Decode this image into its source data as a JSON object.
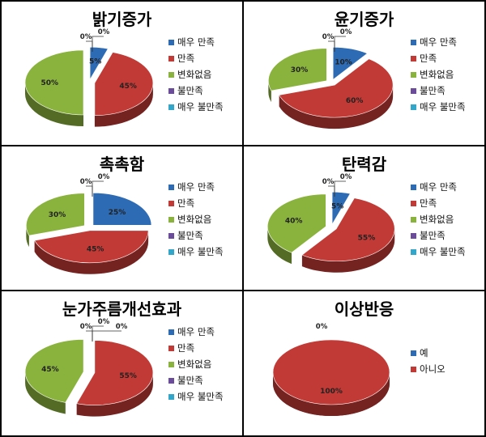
{
  "colors": {
    "매우 만족": "#2E6BB5",
    "만족": "#C23A36",
    "변화없음": "#8AB33D",
    "불만족": "#6B4C9A",
    "매우 불만족": "#33A7C9",
    "예": "#2E6BB5",
    "아니오": "#C23A36"
  },
  "chart_data": [
    {
      "type": "pie",
      "title": "밝기증가",
      "categories": [
        "매우 만족",
        "만족",
        "변화없음",
        "불만족",
        "매우 불만족"
      ],
      "values": [
        5,
        45,
        50,
        0,
        0
      ],
      "value_labels": [
        "5%",
        "45%",
        "50%",
        "0%",
        "0%"
      ],
      "exploded": true,
      "legend_position": "right"
    },
    {
      "type": "pie",
      "title": "윤기증가",
      "categories": [
        "매우 만족",
        "만족",
        "변화없음",
        "불만족",
        "매우 불만족"
      ],
      "values": [
        10,
        60,
        30,
        0,
        0
      ],
      "value_labels": [
        "10%",
        "60%",
        "30%",
        "0%",
        "0%"
      ],
      "exploded": true,
      "legend_position": "right"
    },
    {
      "type": "pie",
      "title": "촉촉함",
      "categories": [
        "매우 만족",
        "만족",
        "변화없음",
        "불만족",
        "매우 불만족"
      ],
      "values": [
        25,
        45,
        30,
        0,
        0
      ],
      "value_labels": [
        "25%",
        "45%",
        "30%",
        "0%",
        "0%"
      ],
      "exploded": true,
      "legend_position": "right"
    },
    {
      "type": "pie",
      "title": "탄력감",
      "categories": [
        "매우 만족",
        "만족",
        "변화없음",
        "불만족",
        "매우 불만족"
      ],
      "values": [
        5,
        55,
        40,
        0,
        0
      ],
      "value_labels": [
        "5%",
        "55%",
        "40%",
        "0%",
        "0%"
      ],
      "exploded": true,
      "legend_position": "right"
    },
    {
      "type": "pie",
      "title": "눈가주름개선효과",
      "categories": [
        "매우 만족",
        "만족",
        "변화없음",
        "불만족",
        "매우 불만족"
      ],
      "values": [
        0,
        55,
        45,
        0,
        0
      ],
      "value_labels": [
        "0%",
        "55%",
        "45%",
        "0%",
        "0%"
      ],
      "exploded": true,
      "legend_position": "right"
    },
    {
      "type": "pie",
      "title": "이상반응",
      "categories": [
        "예",
        "아니오"
      ],
      "values": [
        0,
        100
      ],
      "value_labels": [
        "0%",
        "100%"
      ],
      "exploded": false,
      "legend_position": "right"
    }
  ]
}
